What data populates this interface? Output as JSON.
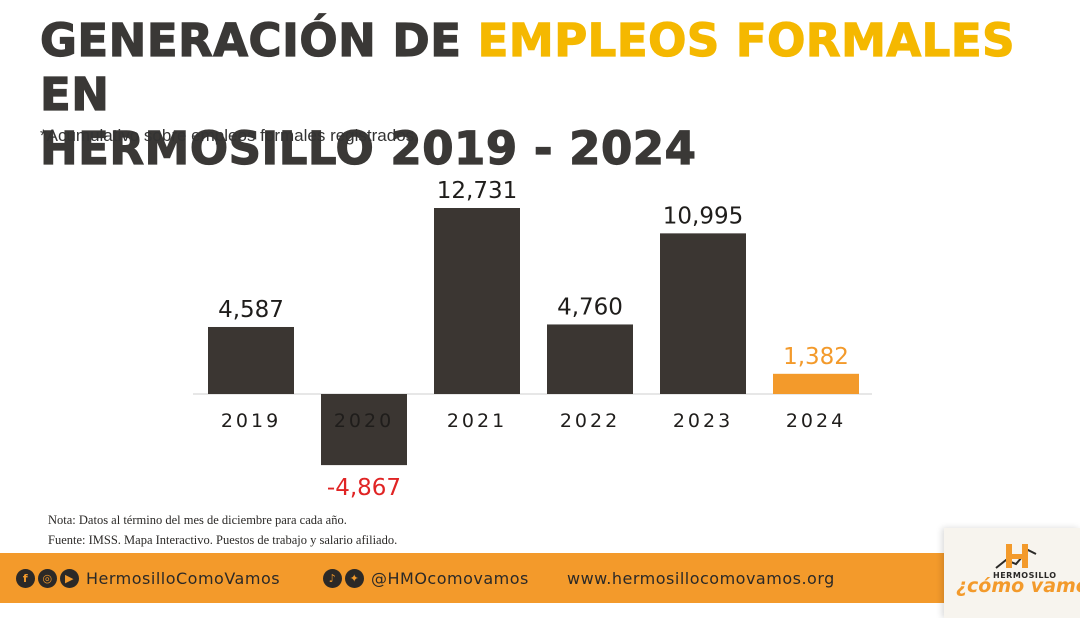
{
  "header": {
    "title_line1_a": "GENERACIÓN DE ",
    "title_line1_b": "EMPLEOS FORMALES",
    "title_line1_c": " EN",
    "title_line2": "HERMOSILLO 2019 - 2024",
    "subtitle": "*Acumulativo sobre empleos formales registrados."
  },
  "chart_data": {
    "type": "bar",
    "title": "GENERACIÓN DE EMPLEOS FORMALES EN HERMOSILLO 2019 - 2024",
    "subtitle": "*Acumulativo sobre empleos formales registrados.",
    "categories": [
      "2019",
      "2020",
      "2021",
      "2022",
      "2023",
      "2024"
    ],
    "values": [
      4587,
      -4867,
      12731,
      4760,
      10995,
      1382
    ],
    "value_labels": [
      "4,587",
      "-4,867",
      "12,731",
      "4,760",
      "10,995",
      "1,382"
    ],
    "bar_colors": [
      "#3b3632",
      "#3b3632",
      "#3b3632",
      "#3b3632",
      "#3b3632",
      "#f39a2b"
    ],
    "label_colors": [
      "#1f1d1b",
      "#e02424",
      "#1f1d1b",
      "#1f1d1b",
      "#1f1d1b",
      "#f39a2b"
    ],
    "xlabel": "",
    "ylabel": "",
    "ylim": [
      -6000,
      14000
    ],
    "grid": false,
    "legend": "none"
  },
  "notes": {
    "nota": "Nota: Datos al término del mes de diciembre para cada año.",
    "fuente": "Fuente: IMSS. Mapa Interactivo. Puestos de trabajo y salario afiliado."
  },
  "footer": {
    "facebook_handle": "HermosilloComoVamos",
    "twitter_handle": "@HMOcomovamos",
    "website": "www.hermosillocomovamos.org",
    "icons": [
      "facebook-icon",
      "instagram-icon",
      "youtube-icon",
      "tiktok-icon",
      "twitter-icon"
    ]
  },
  "logo": {
    "small": "HERMOSILLO",
    "main": "¿cómo vamos?"
  },
  "colors": {
    "accent_yellow": "#f5b800",
    "accent_orange": "#f39a2b",
    "bar_dark": "#3b3632",
    "negative_red": "#e02424"
  }
}
